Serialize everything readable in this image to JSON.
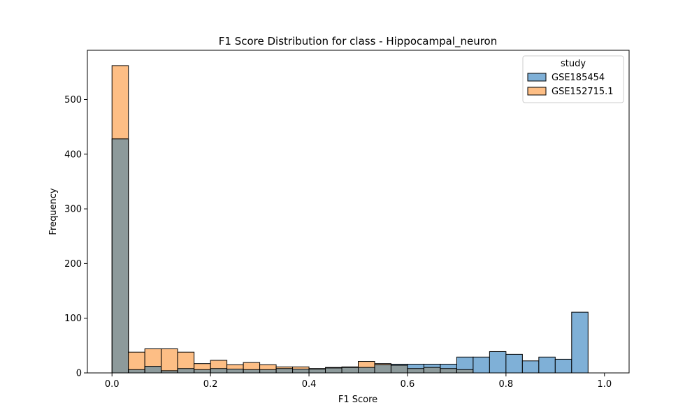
{
  "chart_data": {
    "type": "bar",
    "title": "F1 Score Distribution for class - Hippocampal_neuron",
    "xlabel": "F1 Score",
    "ylabel": "Frequency",
    "xlim": [
      -0.05,
      1.05
    ],
    "ylim": [
      0,
      590
    ],
    "xticks": [
      0.0,
      0.2,
      0.4,
      0.6,
      0.8,
      1.0
    ],
    "xtick_labels": [
      "0.0",
      "0.2",
      "0.4",
      "0.6",
      "0.8",
      "1.0"
    ],
    "yticks": [
      0,
      100,
      200,
      300,
      400,
      500
    ],
    "ytick_labels": [
      "0",
      "100",
      "200",
      "300",
      "400",
      "500"
    ],
    "bin_start": 0.0,
    "bin_end": 1.0,
    "grid": false,
    "legend": {
      "title": "study",
      "placement": "top-right"
    },
    "overlap_color": "#8d9a9b",
    "series": [
      {
        "name": "GSE185454",
        "color": "#7fb0d7",
        "values": [
          428,
          6,
          12,
          4,
          8,
          6,
          8,
          7,
          6,
          6,
          8,
          7,
          7,
          9,
          10,
          10,
          15,
          16,
          16,
          16,
          16,
          29,
          29,
          39,
          34,
          22,
          29,
          25,
          111,
          0
        ]
      },
      {
        "name": "GSE152715.1",
        "color": "#fdbe85",
        "values": [
          562,
          38,
          44,
          44,
          38,
          17,
          23,
          15,
          19,
          15,
          11,
          11,
          8,
          10,
          11,
          21,
          17,
          14,
          8,
          10,
          8,
          6,
          0,
          0,
          0,
          0,
          0,
          0,
          0,
          0
        ]
      }
    ]
  }
}
